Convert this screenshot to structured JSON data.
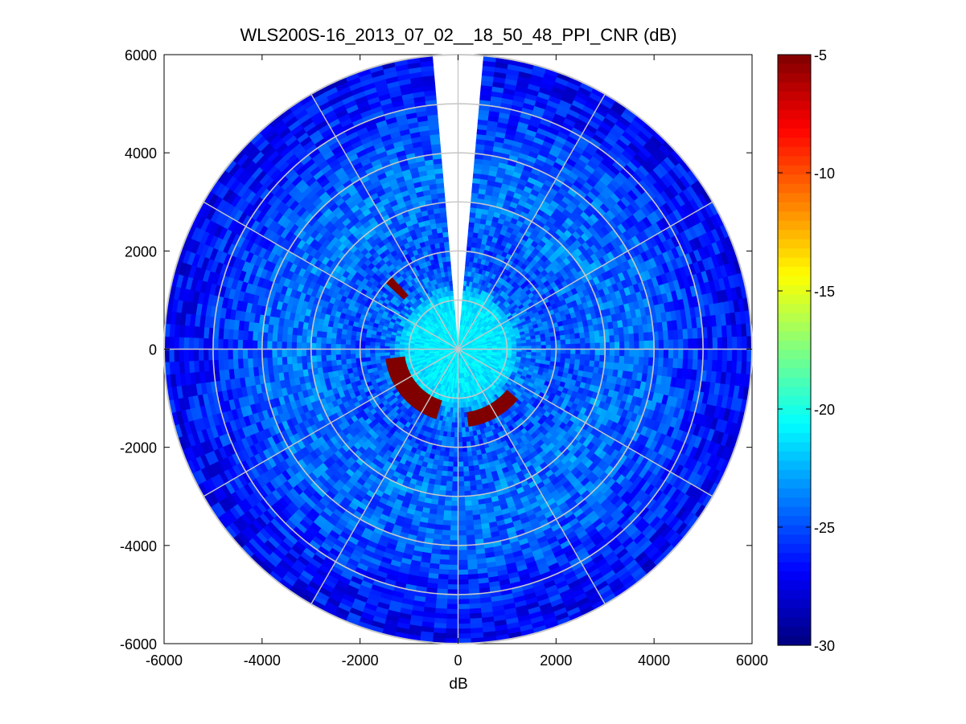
{
  "chart_data": {
    "type": "heatmap",
    "subtype": "polar-ppi",
    "title": "WLS200S-16_2013_07_02__18_50_48_PPI_CNR (dB)",
    "xlabel": "dB",
    "ylabel": "",
    "xlim": [
      -6000,
      6000
    ],
    "ylim": [
      -6000,
      6000
    ],
    "xticks": [
      "-6000",
      "-4000",
      "-2000",
      "0",
      "2000",
      "4000",
      "6000"
    ],
    "yticks": [
      "6000",
      "4000",
      "2000",
      "0",
      "-2000",
      "-4000",
      "-6000"
    ],
    "max_range": 6000,
    "range_rings": [
      1000,
      2000,
      3000,
      4000,
      5000,
      6000
    ],
    "spoke_angles_deg": [
      0,
      30,
      60,
      90,
      120,
      150,
      180,
      210,
      240,
      270,
      300,
      330
    ],
    "colorbar": {
      "min": -30,
      "max": -5,
      "ticks": [
        "-5",
        "-10",
        "-15",
        "-20",
        "-25",
        "-30"
      ],
      "colormap": "jet"
    },
    "missing_sector_azimuth_deg": [
      355,
      5
    ],
    "range_profile_dB": [
      {
        "range": 0,
        "value": -21
      },
      {
        "range": 500,
        "value": -21
      },
      {
        "range": 1100,
        "value": -21.5
      },
      {
        "range": 1300,
        "value": -24
      },
      {
        "range": 2000,
        "value": -25
      },
      {
        "range": 3000,
        "value": -24
      },
      {
        "range": 4000,
        "value": -24.5
      },
      {
        "range": 5000,
        "value": -26
      },
      {
        "range": 6000,
        "value": -27
      }
    ],
    "strong_echoes": [
      {
        "azimuth_deg": [
          198,
          262
        ],
        "range": [
          1150,
          1450
        ],
        "value": -5
      },
      {
        "azimuth_deg": [
          130,
          172
        ],
        "range": [
          1350,
          1550
        ],
        "value": -5
      },
      {
        "azimuth_deg": [
          312,
          318
        ],
        "range": [
          1550,
          2000
        ],
        "value": -5
      }
    ]
  }
}
